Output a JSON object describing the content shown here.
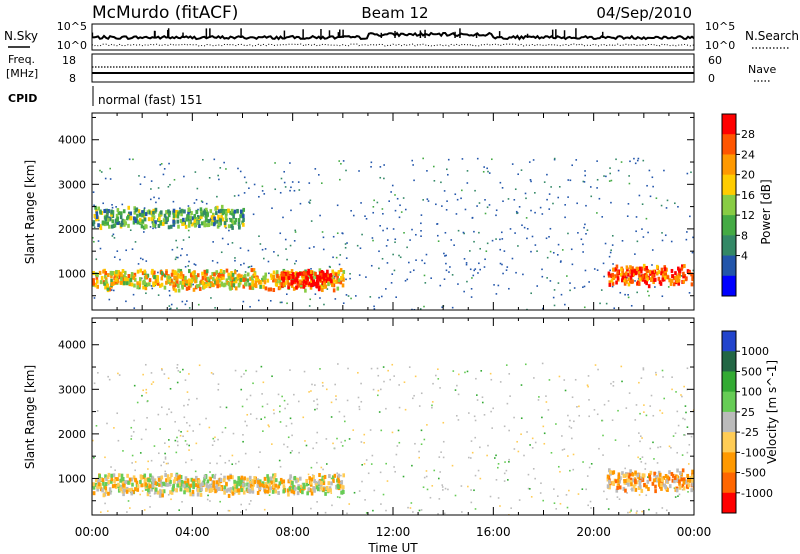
{
  "header": {
    "station": "McMurdo (fitACF)",
    "beam": "Beam 12",
    "date": "04/Sep/2010"
  },
  "noise_panel": {
    "left_label": "N.Sky",
    "right_label": "N.Search",
    "left_ticks": [
      "10^5",
      "10^0"
    ],
    "right_ticks": [
      "10^5",
      "10^0"
    ]
  },
  "freq_panel": {
    "left_label_top": "Freq.",
    "left_label_bottom": "[MHz]",
    "right_label": "Nave",
    "left_ticks": [
      "18",
      "8"
    ],
    "right_ticks": [
      "60",
      "0"
    ]
  },
  "cpid": {
    "label": "CPID",
    "text": "normal (fast) 151"
  },
  "chart_data": [
    {
      "type": "heatmap",
      "title": "",
      "xlabel": "",
      "ylabel": "Slant Range [km]",
      "ylim": [
        180,
        4600
      ],
      "yticks": [
        "1000",
        "2000",
        "3000",
        "4000"
      ],
      "colorbar": {
        "label": "Power [dB]",
        "ticks": [
          "28",
          "24",
          "20",
          "16",
          "12",
          "8",
          "4"
        ],
        "colors": [
          "#ff0000",
          "#ff5500",
          "#ff9900",
          "#ffcc00",
          "#88cc44",
          "#44aa44",
          "#338866",
          "#2255aa",
          "#0000ff"
        ]
      },
      "features": [
        {
          "label": "band near 900 km, 00:00-10:00",
          "t_start": 0,
          "t_end": 10,
          "range_km": 900,
          "level": 18
        },
        {
          "label": "peak 07:30-09:30",
          "t_start": 7.5,
          "t_end": 9.5,
          "range_km": 900,
          "level": 28
        },
        {
          "label": "band near 2300 km, 00:00-06:00",
          "t_start": 0,
          "t_end": 6,
          "range_km": 2300,
          "level": 8
        },
        {
          "label": "band near 1000 km, 20:30-24:00",
          "t_start": 20.5,
          "t_end": 24,
          "range_km": 1000,
          "level": 24
        }
      ]
    },
    {
      "type": "heatmap",
      "title": "",
      "xlabel": "Time UT",
      "ylabel": "Slant Range [km]",
      "ylim": [
        180,
        4600
      ],
      "yticks": [
        "1000",
        "2000",
        "3000",
        "4000"
      ],
      "xticks": [
        "00:00",
        "04:00",
        "08:00",
        "12:00",
        "16:00",
        "20:00",
        "00:00"
      ],
      "colorbar": {
        "label": "Velocity [m s^-1]",
        "ticks": [
          "1000",
          "500",
          "100",
          "25",
          "-25",
          "-100",
          "-500",
          "-1000"
        ],
        "colors": [
          "#2244cc",
          "#226644",
          "#33aa33",
          "#66cc55",
          "#bbbbbb",
          "#ffcc55",
          "#ff9900",
          "#ff6600",
          "#ff0000"
        ]
      },
      "features": [
        {
          "label": "band near 900 km, 00:00-10:00",
          "t_start": 0,
          "t_end": 10,
          "range_km": 900,
          "velocity": -100
        },
        {
          "label": "band near 1000 km, 20:30-24:00",
          "t_start": 20.5,
          "t_end": 24,
          "range_km": 1000,
          "velocity": -500
        }
      ]
    }
  ]
}
